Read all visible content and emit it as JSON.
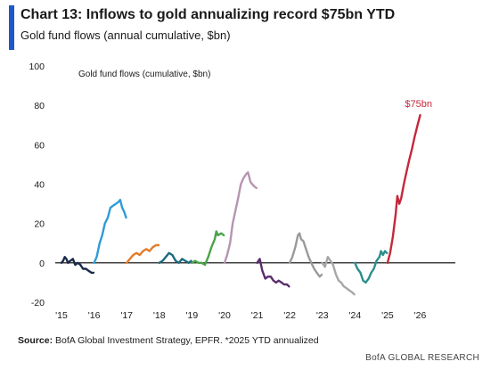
{
  "header": {
    "title": "Chart 13: Inflows to gold annualizing record $75bn YTD",
    "subtitle": "Gold fund flows (annual cumulative, $bn)"
  },
  "footer": {
    "source_label": "Source:",
    "source_text": " BofA Global Investment Strategy, EPFR. *2025 YTD annualized",
    "brand": "BofA GLOBAL RESEARCH"
  },
  "colors": {
    "accent": "#1f58c8",
    "zero_line": "#000000"
  },
  "chart_data": {
    "type": "line",
    "title": "Gold fund flows (cumulative, $bn)",
    "xlabel": "",
    "ylabel": "",
    "xlim": [
      2015,
      2026.3
    ],
    "ylim": [
      -20,
      100
    ],
    "x_ticks": [
      2015,
      2016,
      2017,
      2018,
      2019,
      2020,
      2021,
      2022,
      2023,
      2024,
      2025,
      2026
    ],
    "x_tick_labels": [
      "'15",
      "'16",
      "'17",
      "'18",
      "'19",
      "'20",
      "'21",
      "'22",
      "'23",
      "'24",
      "'25",
      "'26"
    ],
    "y_ticks": [
      -20,
      0,
      20,
      40,
      60,
      80,
      100
    ],
    "y_tick_labels": [
      "-20",
      "0",
      "20",
      "40",
      "60",
      "80",
      "100"
    ],
    "grid": false,
    "legend": "none",
    "annotations": [
      {
        "text": "$75bn",
        "x": 2025.95,
        "y": 81,
        "color": "#c4283b"
      }
    ],
    "series": [
      {
        "year": 2015,
        "color": "#1b2a4a",
        "points": [
          [
            2015.0,
            0
          ],
          [
            2015.05,
            1
          ],
          [
            2015.1,
            3
          ],
          [
            2015.15,
            2
          ],
          [
            2015.2,
            0
          ],
          [
            2015.27,
            1
          ],
          [
            2015.35,
            2
          ],
          [
            2015.42,
            -1
          ],
          [
            2015.5,
            0
          ],
          [
            2015.58,
            -1
          ],
          [
            2015.66,
            -3
          ],
          [
            2015.75,
            -3
          ],
          [
            2015.83,
            -4
          ],
          [
            2015.92,
            -5
          ],
          [
            2015.98,
            -5
          ]
        ]
      },
      {
        "year": 2016,
        "color": "#2f9bd6",
        "points": [
          [
            2016.0,
            0
          ],
          [
            2016.08,
            3
          ],
          [
            2016.17,
            10
          ],
          [
            2016.25,
            14
          ],
          [
            2016.33,
            20
          ],
          [
            2016.42,
            23
          ],
          [
            2016.5,
            28
          ],
          [
            2016.58,
            29
          ],
          [
            2016.67,
            30
          ],
          [
            2016.75,
            31
          ],
          [
            2016.8,
            32
          ],
          [
            2016.86,
            28
          ],
          [
            2016.92,
            26
          ],
          [
            2016.98,
            23
          ]
        ]
      },
      {
        "year": 2017,
        "color": "#e47b28",
        "points": [
          [
            2017.0,
            0
          ],
          [
            2017.1,
            2
          ],
          [
            2017.2,
            4
          ],
          [
            2017.3,
            5
          ],
          [
            2017.4,
            4
          ],
          [
            2017.5,
            6
          ],
          [
            2017.6,
            7
          ],
          [
            2017.7,
            6
          ],
          [
            2017.8,
            8
          ],
          [
            2017.9,
            9
          ],
          [
            2017.98,
            9
          ]
        ]
      },
      {
        "year": 2018,
        "color": "#1b6b7d",
        "points": [
          [
            2018.0,
            0
          ],
          [
            2018.1,
            1
          ],
          [
            2018.2,
            3
          ],
          [
            2018.3,
            5
          ],
          [
            2018.4,
            4
          ],
          [
            2018.5,
            1
          ],
          [
            2018.6,
            0
          ],
          [
            2018.7,
            2
          ],
          [
            2018.8,
            1
          ],
          [
            2018.9,
            0
          ],
          [
            2018.98,
            1
          ]
        ]
      },
      {
        "year": 2019,
        "color": "#4aa34a",
        "points": [
          [
            2019.0,
            0
          ],
          [
            2019.1,
            1
          ],
          [
            2019.2,
            0
          ],
          [
            2019.3,
            0
          ],
          [
            2019.4,
            -1
          ],
          [
            2019.5,
            3
          ],
          [
            2019.6,
            8
          ],
          [
            2019.7,
            12
          ],
          [
            2019.75,
            16
          ],
          [
            2019.8,
            14
          ],
          [
            2019.9,
            15
          ],
          [
            2019.98,
            14
          ]
        ]
      },
      {
        "year": 2020,
        "color": "#b795b0",
        "points": [
          [
            2020.0,
            0
          ],
          [
            2020.08,
            4
          ],
          [
            2020.17,
            10
          ],
          [
            2020.25,
            20
          ],
          [
            2020.33,
            26
          ],
          [
            2020.42,
            33
          ],
          [
            2020.5,
            40
          ],
          [
            2020.58,
            43
          ],
          [
            2020.66,
            45
          ],
          [
            2020.72,
            46
          ],
          [
            2020.8,
            41
          ],
          [
            2020.9,
            39
          ],
          [
            2020.98,
            38
          ]
        ]
      },
      {
        "year": 2021,
        "color": "#5a2d6d",
        "points": [
          [
            2021.0,
            0
          ],
          [
            2021.08,
            2
          ],
          [
            2021.16,
            -4
          ],
          [
            2021.25,
            -8
          ],
          [
            2021.33,
            -7
          ],
          [
            2021.42,
            -7
          ],
          [
            2021.5,
            -9
          ],
          [
            2021.58,
            -10
          ],
          [
            2021.66,
            -9
          ],
          [
            2021.75,
            -10
          ],
          [
            2021.83,
            -11
          ],
          [
            2021.92,
            -11
          ],
          [
            2021.98,
            -12
          ]
        ]
      },
      {
        "year": 2022,
        "color": "#9a9a9a",
        "points": [
          [
            2022.0,
            0
          ],
          [
            2022.08,
            3
          ],
          [
            2022.17,
            8
          ],
          [
            2022.25,
            14
          ],
          [
            2022.3,
            15
          ],
          [
            2022.35,
            12
          ],
          [
            2022.42,
            11
          ],
          [
            2022.5,
            7
          ],
          [
            2022.58,
            3
          ],
          [
            2022.66,
            0
          ],
          [
            2022.75,
            -3
          ],
          [
            2022.83,
            -5
          ],
          [
            2022.92,
            -7
          ],
          [
            2022.98,
            -6
          ]
        ]
      },
      {
        "year": 2023,
        "color": "#a8a6a6",
        "points": [
          [
            2023.0,
            0
          ],
          [
            2023.08,
            -2
          ],
          [
            2023.17,
            3
          ],
          [
            2023.25,
            1
          ],
          [
            2023.33,
            -1
          ],
          [
            2023.42,
            -6
          ],
          [
            2023.5,
            -9
          ],
          [
            2023.58,
            -10
          ],
          [
            2023.66,
            -12
          ],
          [
            2023.75,
            -13
          ],
          [
            2023.83,
            -14
          ],
          [
            2023.92,
            -15
          ],
          [
            2023.98,
            -16
          ]
        ]
      },
      {
        "year": 2024,
        "color": "#2a8f8b",
        "points": [
          [
            2024.0,
            0
          ],
          [
            2024.08,
            -3
          ],
          [
            2024.17,
            -5
          ],
          [
            2024.25,
            -9
          ],
          [
            2024.33,
            -10
          ],
          [
            2024.42,
            -8
          ],
          [
            2024.5,
            -5
          ],
          [
            2024.58,
            -3
          ],
          [
            2024.66,
            1
          ],
          [
            2024.75,
            3
          ],
          [
            2024.8,
            6
          ],
          [
            2024.86,
            4
          ],
          [
            2024.92,
            6
          ],
          [
            2024.98,
            5
          ]
        ]
      },
      {
        "year": 2025,
        "color": "#c4283b",
        "points": [
          [
            2025.0,
            0
          ],
          [
            2025.08,
            5
          ],
          [
            2025.16,
            13
          ],
          [
            2025.25,
            25
          ],
          [
            2025.3,
            34
          ],
          [
            2025.36,
            30
          ],
          [
            2025.42,
            33
          ],
          [
            2025.5,
            40
          ],
          [
            2025.58,
            46
          ],
          [
            2025.66,
            52
          ],
          [
            2025.75,
            58
          ],
          [
            2025.83,
            64
          ],
          [
            2025.92,
            70
          ],
          [
            2026.0,
            75
          ]
        ]
      }
    ]
  }
}
